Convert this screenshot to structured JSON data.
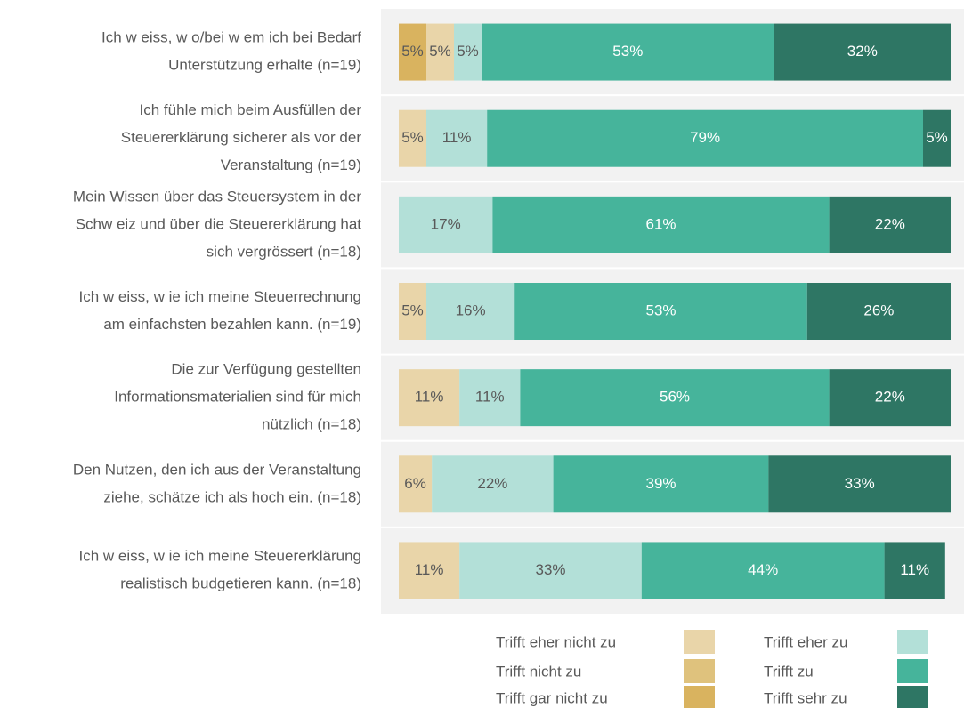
{
  "chart_data": {
    "type": "stacked-barh",
    "categories": [
      [
        "Ich w eiss, w o/bei w em ich bei Bedarf",
        "Unterstützung erhalte (n=19)"
      ],
      [
        "Ich fühle mich beim Ausfüllen der",
        "Steuererklärung sicherer als vor der",
        "Veranstaltung (n=19)"
      ],
      [
        "Mein Wissen über das Steuersystem in der",
        "Schw eiz und über die Steuererklärung hat",
        "sich vergrössert (n=18)"
      ],
      [
        "Ich w eiss, w ie ich meine Steuerrechnung",
        "am einfachsten bezahlen kann. (n=19)"
      ],
      [
        "Die zur Verfügung gestellten",
        "Informationsmaterialien sind für mich",
        "nützlich (n=18)"
      ],
      [
        "Den Nutzen, den ich aus der Veranstaltung",
        "ziehe, schätze ich als hoch ein. (n=18)"
      ],
      [
        "Ich w eiss, w ie ich meine Steuererklärung",
        "realistisch budgetieren kann. (n=18)"
      ]
    ],
    "series": [
      {
        "name": "Trifft gar nicht zu",
        "color": "#d9b35f",
        "values": [
          5,
          null,
          null,
          null,
          null,
          null,
          null
        ],
        "value_labels": [
          "5%",
          null,
          null,
          null,
          null,
          null,
          null
        ]
      },
      {
        "name": "Trifft nicht zu",
        "color": "#dfc27d",
        "values": [
          null,
          null,
          null,
          null,
          null,
          null,
          null
        ],
        "value_labels": [
          null,
          null,
          null,
          null,
          null,
          null,
          null
        ]
      },
      {
        "name": "Trifft eher nicht zu",
        "color": "#e9d5a9",
        "values": [
          5,
          5,
          null,
          5,
          11,
          6,
          11
        ],
        "value_labels": [
          "5%",
          "5%",
          null,
          "5%",
          "11%",
          "6%",
          "11%"
        ]
      },
      {
        "name": "Trifft eher zu",
        "color": "#b3e0d8",
        "values": [
          5,
          11,
          17,
          16,
          11,
          22,
          33
        ],
        "value_labels": [
          "5%",
          "11%",
          "17%",
          "16%",
          "11%",
          "22%",
          "33%"
        ]
      },
      {
        "name": "Trifft zu",
        "color": "#46b49b",
        "values": [
          53,
          79,
          61,
          53,
          56,
          39,
          44
        ],
        "value_labels": [
          "53%",
          "79%",
          "61%",
          "53%",
          "56%",
          "39%",
          "44%"
        ]
      },
      {
        "name": "Trifft sehr zu",
        "color": "#2e7664",
        "values": [
          32,
          5,
          22,
          26,
          22,
          33,
          11
        ],
        "value_labels": [
          "32%",
          "5%",
          "22%",
          "26%",
          "22%",
          "33%",
          "11%"
        ]
      }
    ],
    "xlim": [
      0,
      100
    ]
  }
}
